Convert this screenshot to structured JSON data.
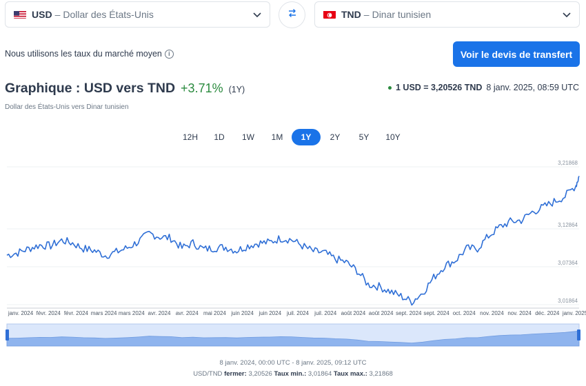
{
  "from_currency": {
    "code": "USD",
    "dash": "–",
    "name": "Dollar des États-Unis",
    "flag_icon": "us-flag-icon"
  },
  "to_currency": {
    "code": "TND",
    "dash": "–",
    "name": "Dinar tunisien",
    "flag_icon": "tunisia-flag-icon"
  },
  "swap_icon": "swap-arrows-icon",
  "mid_market_text": "Nous utilisons les taux du marché moyen",
  "info_icon_glyph": "i",
  "cta_label": "Voir le devis de transfert",
  "chart_title": "Graphique : USD vers TND",
  "change": "+3.71%",
  "change_period": "(1Y)",
  "chart_subtitle": "Dollar des États-Unis vers Dinar tunisien",
  "current_rate": {
    "pair": "1 USD = 3,20526 TND",
    "timestamp": "8 janv. 2025, 08:59 UTC"
  },
  "tabs": [
    {
      "label": "12H",
      "active": false
    },
    {
      "label": "1D",
      "active": false
    },
    {
      "label": "1W",
      "active": false
    },
    {
      "label": "1M",
      "active": false
    },
    {
      "label": "1Y",
      "active": true
    },
    {
      "label": "2Y",
      "active": false
    },
    {
      "label": "5Y",
      "active": false
    },
    {
      "label": "10Y",
      "active": false
    }
  ],
  "colors": {
    "accent": "#1a73e8",
    "positive": "#2a8a3e",
    "line": "#2f6fd6",
    "navigator_fill": "#8fb4ee"
  },
  "chart_data": {
    "type": "line",
    "title": "",
    "xlabel": "",
    "ylabel": "",
    "x_ticks": [
      "janv. 2024",
      "févr. 2024",
      "févr. 2024",
      "mars 2024",
      "mars 2024",
      "avr. 2024",
      "avr. 2024",
      "mai 2024",
      "juin 2024",
      "juin 2024",
      "juil. 2024",
      "juil. 2024",
      "août 2024",
      "août 2024",
      "sept. 2024",
      "sept. 2024",
      "oct. 2024",
      "nov. 2024",
      "nov. 2024",
      "déc. 2024",
      "janv. 2025"
    ],
    "y_ticks": [
      "3,01864",
      "3,07364",
      "3,12864",
      "3,21868"
    ],
    "ylim": [
      3.01864,
      3.21868
    ],
    "grid": true,
    "series": [
      {
        "x": [
          "2024-01-08",
          "2024-01-15",
          "2024-01-22",
          "2024-01-29",
          "2024-02-05",
          "2024-02-12",
          "2024-02-19",
          "2024-02-26",
          "2024-03-04",
          "2024-03-11",
          "2024-03-18",
          "2024-03-25",
          "2024-04-01",
          "2024-04-08",
          "2024-04-15",
          "2024-04-22",
          "2024-04-29",
          "2024-05-06",
          "2024-05-13",
          "2024-05-20",
          "2024-05-27",
          "2024-06-03",
          "2024-06-10",
          "2024-06-17",
          "2024-06-24",
          "2024-07-01",
          "2024-07-08",
          "2024-07-15",
          "2024-07-22",
          "2024-07-29",
          "2024-08-05",
          "2024-08-12",
          "2024-08-19",
          "2024-08-26",
          "2024-09-02",
          "2024-09-09",
          "2024-09-16",
          "2024-09-23",
          "2024-09-30",
          "2024-10-07",
          "2024-10-14",
          "2024-10-21",
          "2024-10-28",
          "2024-11-04",
          "2024-11-11",
          "2024-11-18",
          "2024-11-25",
          "2024-12-02",
          "2024-12-09",
          "2024-12-16",
          "2024-12-23",
          "2024-12-30",
          "2025-01-06",
          "2025-01-08"
        ],
        "values": [
          3.0905,
          3.094,
          3.1,
          3.105,
          3.104,
          3.112,
          3.108,
          3.1,
          3.097,
          3.09,
          3.095,
          3.101,
          3.11,
          3.122,
          3.117,
          3.115,
          3.101,
          3.108,
          3.099,
          3.101,
          3.102,
          3.097,
          3.104,
          3.108,
          3.109,
          3.115,
          3.113,
          3.104,
          3.096,
          3.094,
          3.085,
          3.08,
          3.068,
          3.048,
          3.045,
          3.038,
          3.031,
          3.023,
          3.036,
          3.058,
          3.075,
          3.083,
          3.1,
          3.1,
          3.118,
          3.131,
          3.139,
          3.141,
          3.153,
          3.16,
          3.168,
          3.176,
          3.192,
          3.2053
        ]
      }
    ]
  },
  "footer": {
    "range": "8 janv. 2024, 00:00 UTC - 8 janv. 2025, 09:12 UTC",
    "pair": "USD/TND",
    "close_label": "fermer:",
    "close_value": "3,20526",
    "min_label": "Taux min.:",
    "min_value": "3,01864",
    "max_label": "Taux max.:",
    "max_value": "3,21868"
  }
}
